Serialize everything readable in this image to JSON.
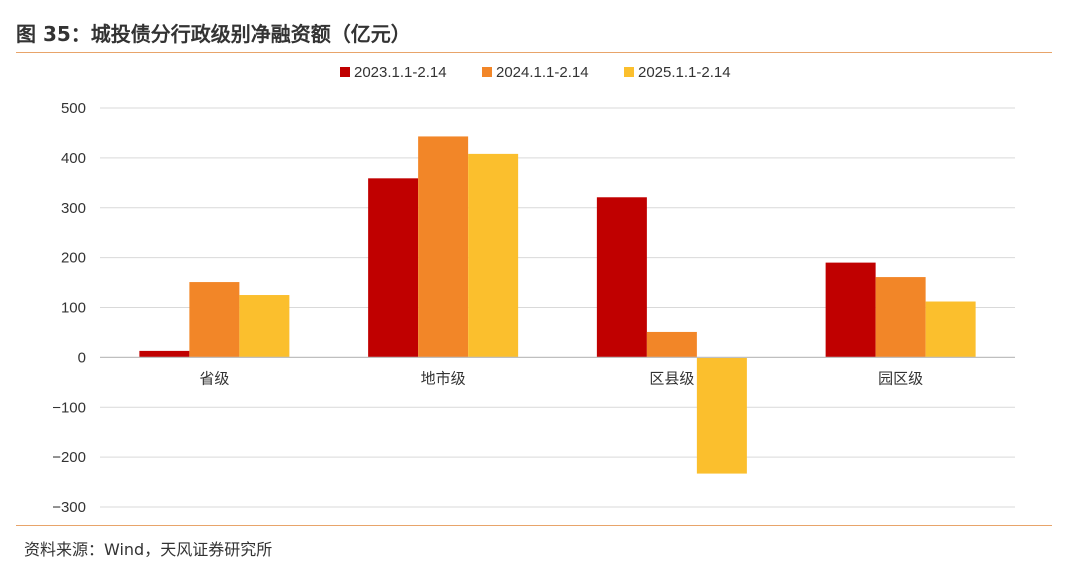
{
  "header": {
    "title": "图 35：城投债分行政级别净融资额（亿元）"
  },
  "footer": {
    "source": "资料来源：Wind，天风证券研究所"
  },
  "chart_data": {
    "type": "bar",
    "title": "",
    "xlabel": "",
    "ylabel": "",
    "categories": [
      "省级",
      "地市级",
      "区县级",
      "园区级"
    ],
    "series": [
      {
        "name": "2023.1.1-2.14",
        "color": "#C00000",
        "values": [
          13,
          359,
          321,
          190
        ]
      },
      {
        "name": "2024.1.1-2.14",
        "color": "#F28628",
        "values": [
          151,
          443,
          51,
          161
        ]
      },
      {
        "name": "2025.1.1-2.14",
        "color": "#FBBF2D",
        "values": [
          125,
          408,
          -233,
          112
        ]
      }
    ],
    "ylim": [
      -300,
      500
    ],
    "yticks": [
      -300,
      -200,
      -100,
      0,
      100,
      200,
      300,
      400,
      500
    ],
    "grid": true,
    "legend_position": "top-center"
  }
}
